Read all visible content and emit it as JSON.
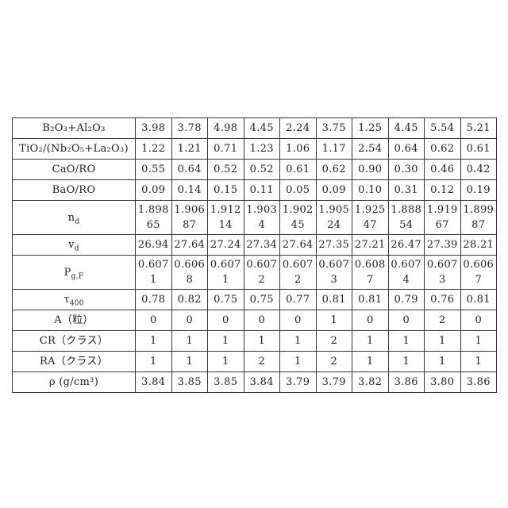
{
  "table": {
    "border_color": "#3a3a3a",
    "background_color": "#ffffff",
    "text_color": "#232323",
    "rows": [
      {
        "label": {
          "text": "B₂O₃+Al₂O₃",
          "sub": ""
        },
        "values": [
          "3.98",
          "3.78",
          "4.98",
          "4.45",
          "2.24",
          "3.75",
          "1.25",
          "4.45",
          "5.54",
          "5.21"
        ]
      },
      {
        "label": {
          "text": "TiO₂/(Nb₂O₅+La₂O₃)",
          "sub": ""
        },
        "values": [
          "1.22",
          "1.21",
          "0.71",
          "1.23",
          "1.06",
          "1.17",
          "2.54",
          "0.64",
          "0.62",
          "0.61"
        ]
      },
      {
        "label": {
          "text": "CaO/RO",
          "sub": ""
        },
        "values": [
          "0.55",
          "0.64",
          "0.52",
          "0.52",
          "0.61",
          "0.62",
          "0.90",
          "0.30",
          "0.46",
          "0.42"
        ]
      },
      {
        "label": {
          "text": "BaO/RO",
          "sub": ""
        },
        "values": [
          "0.09",
          "0.14",
          "0.15",
          "0.11",
          "0.05",
          "0.09",
          "0.10",
          "0.31",
          "0.12",
          "0.19"
        ]
      },
      {
        "label": {
          "text": "n",
          "sub": "d"
        },
        "values": [
          "1.898\n65",
          "1.906\n87",
          "1.912\n14",
          "1.903\n4",
          "1.902\n45",
          "1.905\n24",
          "1.925\n47",
          "1.888\n54",
          "1.919\n67",
          "1.899\n87"
        ]
      },
      {
        "label": {
          "text": "v",
          "sub": "d"
        },
        "values": [
          "26.94",
          "27.64",
          "27.24",
          "27.34",
          "27.64",
          "27.35",
          "27.21",
          "26.47",
          "27.39",
          "28.21"
        ]
      },
      {
        "label": {
          "text": "P",
          "sub": "g,F"
        },
        "values": [
          "0.607\n1",
          "0.606\n8",
          "0.607\n1",
          "0.607\n2",
          "0.607\n2",
          "0.607\n3",
          "0.608\n7",
          "0.607\n4",
          "0.607\n3",
          "0.606\n7"
        ]
      },
      {
        "label": {
          "text": "τ",
          "sub": "400"
        },
        "values": [
          "0.78",
          "0.82",
          "0.75",
          "0.75",
          "0.77",
          "0.81",
          "0.81",
          "0.79",
          "0.76",
          "0.81"
        ]
      },
      {
        "label": {
          "text": "A（粒）",
          "sub": ""
        },
        "values": [
          "0",
          "0",
          "0",
          "0",
          "0",
          "1",
          "0",
          "0",
          "2",
          "0"
        ]
      },
      {
        "label": {
          "text": "CR（クラス）",
          "sub": ""
        },
        "values": [
          "1",
          "1",
          "1",
          "1",
          "1",
          "2",
          "1",
          "1",
          "1",
          "1"
        ]
      },
      {
        "label": {
          "text": "RA（クラス）",
          "sub": ""
        },
        "values": [
          "1",
          "1",
          "1",
          "2",
          "1",
          "2",
          "1",
          "1",
          "1",
          "1"
        ]
      },
      {
        "label": {
          "text": "ρ (g/cm³)",
          "sub": ""
        },
        "values": [
          "3.84",
          "3.85",
          "3.85",
          "3.84",
          "3.79",
          "3.79",
          "3.82",
          "3.86",
          "3.80",
          "3.86"
        ]
      }
    ]
  }
}
